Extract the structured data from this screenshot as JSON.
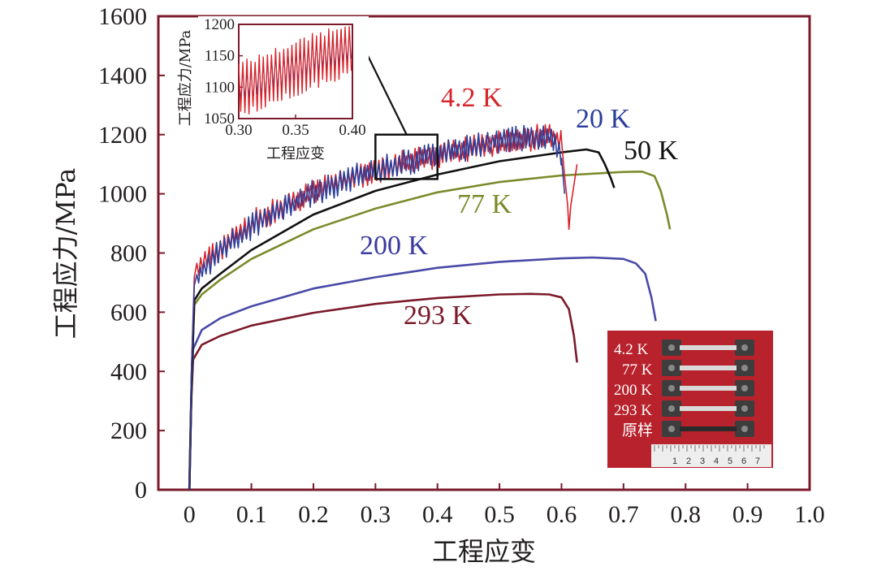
{
  "chart_data": {
    "type": "line",
    "title": "",
    "xlabel": "工程应变",
    "ylabel": "工程应力/MPa",
    "xlim": [
      -0.05,
      1.0
    ],
    "ylim": [
      0,
      1600
    ],
    "xticks": [
      "0",
      "0.1",
      "0.2",
      "0.3",
      "0.4",
      "0.5",
      "0.6",
      "0.7",
      "0.8",
      "0.9",
      "1.0"
    ],
    "yticks": [
      "0",
      "200",
      "400",
      "600",
      "800",
      "1000",
      "1200",
      "1400",
      "1600"
    ],
    "colors": {
      "frame": "#7a1a2a",
      "k4_2": "#d8232a",
      "k20": "#2b3f9b",
      "k50": "#111111",
      "k77": "#7b8a2a",
      "k200": "#4a4aa8",
      "k293": "#7a1a2a"
    },
    "series": [
      {
        "name": "293 K",
        "label_color": "#7a1a2a",
        "serrated": false,
        "points": [
          [
            0,
            0
          ],
          [
            0.003,
            300
          ],
          [
            0.006,
            440
          ],
          [
            0.02,
            490
          ],
          [
            0.05,
            520
          ],
          [
            0.1,
            555
          ],
          [
            0.2,
            598
          ],
          [
            0.3,
            628
          ],
          [
            0.4,
            648
          ],
          [
            0.5,
            660
          ],
          [
            0.55,
            662
          ],
          [
            0.58,
            660
          ],
          [
            0.6,
            650
          ],
          [
            0.612,
            610
          ],
          [
            0.62,
            520
          ],
          [
            0.625,
            430
          ]
        ]
      },
      {
        "name": "200 K",
        "label_color": "#3a3aa0",
        "serrated": false,
        "points": [
          [
            0,
            0
          ],
          [
            0.003,
            320
          ],
          [
            0.006,
            475
          ],
          [
            0.02,
            540
          ],
          [
            0.05,
            580
          ],
          [
            0.1,
            620
          ],
          [
            0.2,
            680
          ],
          [
            0.3,
            718
          ],
          [
            0.4,
            750
          ],
          [
            0.5,
            770
          ],
          [
            0.6,
            782
          ],
          [
            0.65,
            785
          ],
          [
            0.7,
            780
          ],
          [
            0.72,
            765
          ],
          [
            0.735,
            730
          ],
          [
            0.745,
            650
          ],
          [
            0.752,
            570
          ]
        ]
      },
      {
        "name": "77 K",
        "label_color": "#7b8a2a",
        "serrated": false,
        "points": [
          [
            0,
            0
          ],
          [
            0.004,
            400
          ],
          [
            0.008,
            625
          ],
          [
            0.02,
            660
          ],
          [
            0.05,
            710
          ],
          [
            0.1,
            780
          ],
          [
            0.2,
            880
          ],
          [
            0.3,
            950
          ],
          [
            0.4,
            1005
          ],
          [
            0.5,
            1040
          ],
          [
            0.6,
            1062
          ],
          [
            0.7,
            1074
          ],
          [
            0.73,
            1075
          ],
          [
            0.75,
            1060
          ],
          [
            0.76,
            1010
          ],
          [
            0.77,
            930
          ],
          [
            0.775,
            880
          ]
        ]
      },
      {
        "name": "50 K",
        "label_color": "#111111",
        "serrated": false,
        "points": [
          [
            0,
            0
          ],
          [
            0.004,
            400
          ],
          [
            0.008,
            640
          ],
          [
            0.02,
            680
          ],
          [
            0.05,
            730
          ],
          [
            0.1,
            810
          ],
          [
            0.2,
            930
          ],
          [
            0.3,
            1010
          ],
          [
            0.4,
            1065
          ],
          [
            0.5,
            1110
          ],
          [
            0.6,
            1140
          ],
          [
            0.64,
            1150
          ],
          [
            0.66,
            1140
          ],
          [
            0.67,
            1100
          ],
          [
            0.68,
            1050
          ],
          [
            0.685,
            1020
          ]
        ]
      },
      {
        "name": "4.2 K",
        "label_color": "#d8232a",
        "serrated": true,
        "points": [
          [
            0,
            0
          ],
          [
            0.004,
            450
          ],
          [
            0.008,
            720
          ],
          [
            0.02,
            760
          ],
          [
            0.05,
            820
          ],
          [
            0.1,
            900
          ],
          [
            0.2,
            1010
          ],
          [
            0.3,
            1080
          ],
          [
            0.4,
            1130
          ],
          [
            0.5,
            1170
          ],
          [
            0.58,
            1200
          ],
          [
            0.6,
            1180
          ],
          [
            0.605,
            1060
          ],
          [
            0.61,
            960
          ],
          [
            0.612,
            880
          ],
          [
            0.615,
            960
          ],
          [
            0.62,
            1030
          ],
          [
            0.625,
            1100
          ]
        ]
      },
      {
        "name": "20 K",
        "label_color": "#2b3f9b",
        "serrated": true,
        "points": [
          [
            0,
            0
          ],
          [
            0.004,
            430
          ],
          [
            0.008,
            690
          ],
          [
            0.02,
            740
          ],
          [
            0.05,
            810
          ],
          [
            0.1,
            890
          ],
          [
            0.2,
            1005
          ],
          [
            0.3,
            1080
          ],
          [
            0.4,
            1135
          ],
          [
            0.5,
            1180
          ],
          [
            0.58,
            1200
          ],
          [
            0.6,
            1120
          ],
          [
            0.605,
            1000
          ]
        ]
      }
    ],
    "inset": {
      "xlabel": "工程应变",
      "ylabel": "工程应力/MPa",
      "xlim": [
        0.3,
        0.4
      ],
      "ylim": [
        1050,
        1200
      ],
      "xticks": [
        "0.30",
        "0.35",
        "0.40"
      ],
      "yticks": [
        "1050",
        "1100",
        "1150",
        "1200"
      ],
      "zoom_box": {
        "x": [
          0.3,
          0.4
        ],
        "y": [
          1050,
          1200
        ]
      }
    },
    "photo_labels": [
      "4.2 K",
      "77 K",
      "200 K",
      "293 K",
      "原样"
    ],
    "ruler_numbers": [
      "1",
      "2",
      "3",
      "4",
      "5",
      "6",
      "7"
    ]
  }
}
